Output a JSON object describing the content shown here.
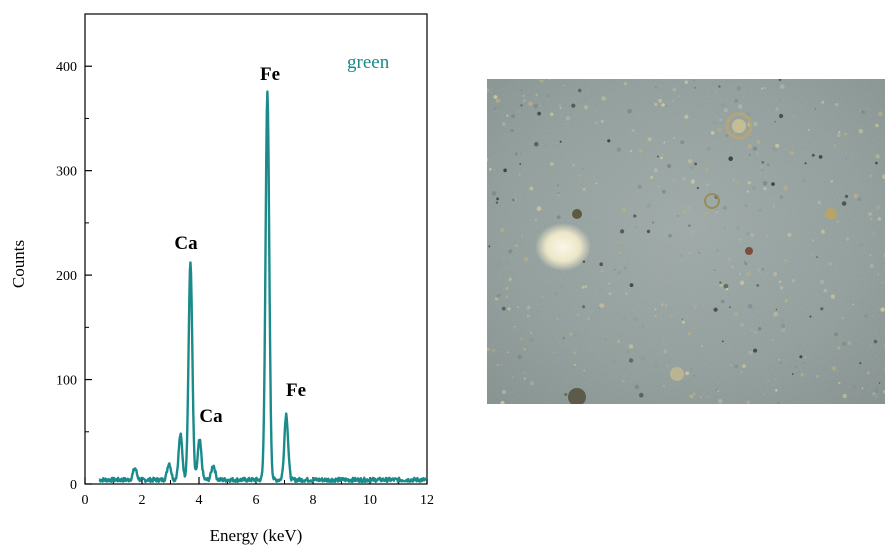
{
  "chart_data": {
    "type": "line",
    "xlabel": "Energy (keV)",
    "ylabel": "Counts",
    "xlim": [
      0,
      12
    ],
    "ylim": [
      0,
      450
    ],
    "xticks": [
      "0",
      "2",
      "4",
      "6",
      "8",
      "10",
      "12"
    ],
    "yticks": [
      "0",
      "100",
      "200",
      "300",
      "400"
    ],
    "grid": false,
    "legend_position": "top-right",
    "series": [
      {
        "name": "green",
        "color": "#1a8a8a",
        "baseline": 4,
        "x_range": [
          0.5,
          12
        ],
        "peaks": [
          {
            "x": 1.75,
            "y": 15
          },
          {
            "x": 2.95,
            "y": 20
          },
          {
            "x": 3.35,
            "y": 47
          },
          {
            "x": 3.7,
            "y": 212
          },
          {
            "x": 4.02,
            "y": 42
          },
          {
            "x": 4.5,
            "y": 18
          },
          {
            "x": 6.4,
            "y": 374
          },
          {
            "x": 7.06,
            "y": 67
          }
        ]
      }
    ],
    "annotations": [
      {
        "text": "Fe",
        "x": 6.4,
        "y": 374
      },
      {
        "text": "Ca",
        "x": 3.7,
        "y": 212
      },
      {
        "text": "Ca",
        "x": 4.0,
        "y": 42
      },
      {
        "text": "Fe",
        "x": 7.06,
        "y": 67
      }
    ]
  },
  "image": {
    "description_icon": "micrograph-photo",
    "colors": [
      "#8f9c9c",
      "#a9b2ad",
      "#7d8a89",
      "#b3ad8a"
    ]
  }
}
